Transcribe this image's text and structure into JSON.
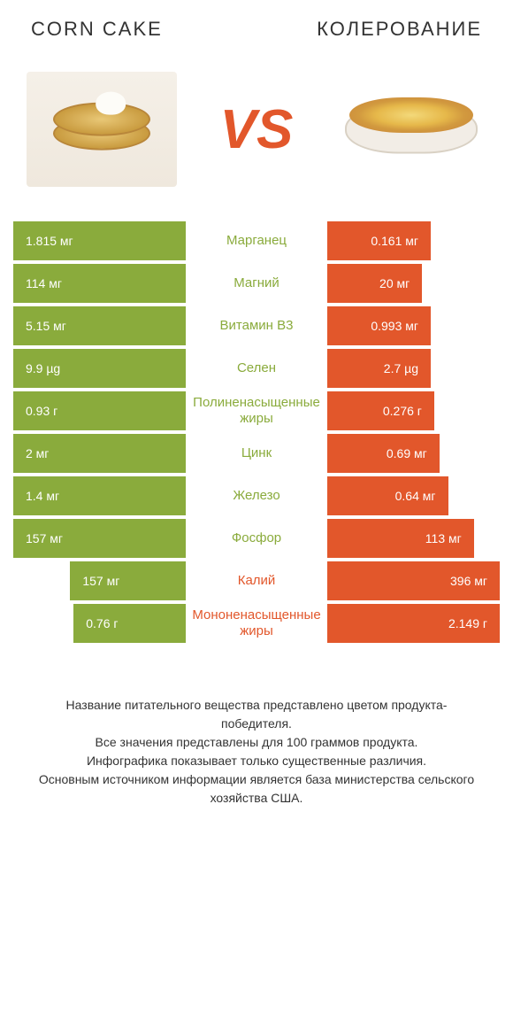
{
  "colors": {
    "green": "#8aab3c",
    "orange": "#e2572b",
    "row_alt_bg": "#ffffff"
  },
  "header": {
    "left_title": "CORN CAKE",
    "right_title": "КОЛЕРОВАНИЕ",
    "vs_label": "VS"
  },
  "rows": [
    {
      "label": "Марганец",
      "left_val": "1.815 мг",
      "right_val": "0.161 мг",
      "left_pct": 100,
      "right_pct": 60,
      "winner": "left"
    },
    {
      "label": "Магний",
      "left_val": "114 мг",
      "right_val": "20 мг",
      "left_pct": 100,
      "right_pct": 55,
      "winner": "left"
    },
    {
      "label": "Витамин B3",
      "left_val": "5.15 мг",
      "right_val": "0.993 мг",
      "left_pct": 100,
      "right_pct": 60,
      "winner": "left"
    },
    {
      "label": "Селен",
      "left_val": "9.9 µg",
      "right_val": "2.7 µg",
      "left_pct": 100,
      "right_pct": 60,
      "winner": "left"
    },
    {
      "label": "Полиненасыщенные жиры",
      "left_val": "0.93 г",
      "right_val": "0.276 г",
      "left_pct": 100,
      "right_pct": 62,
      "winner": "left"
    },
    {
      "label": "Цинк",
      "left_val": "2 мг",
      "right_val": "0.69 мг",
      "left_pct": 100,
      "right_pct": 65,
      "winner": "left"
    },
    {
      "label": "Железо",
      "left_val": "1.4 мг",
      "right_val": "0.64 мг",
      "left_pct": 100,
      "right_pct": 70,
      "winner": "left"
    },
    {
      "label": "Фосфор",
      "left_val": "157 мг",
      "right_val": "113 мг",
      "left_pct": 100,
      "right_pct": 85,
      "winner": "left"
    },
    {
      "label": "Калий",
      "left_val": "157 мг",
      "right_val": "396 мг",
      "left_pct": 67,
      "right_pct": 100,
      "winner": "right"
    },
    {
      "label": "Мононенасыщенные жиры",
      "left_val": "0.76 г",
      "right_val": "2.149 г",
      "left_pct": 65,
      "right_pct": 100,
      "winner": "right"
    }
  ],
  "footer": "Название питательного вещества представлено цветом продукта-победителя.\nВсе значения представлены для 100 граммов продукта.\nИнфографика показывает только существенные различия.\nОсновным источником информации является база министерства сельского хозяйства США."
}
